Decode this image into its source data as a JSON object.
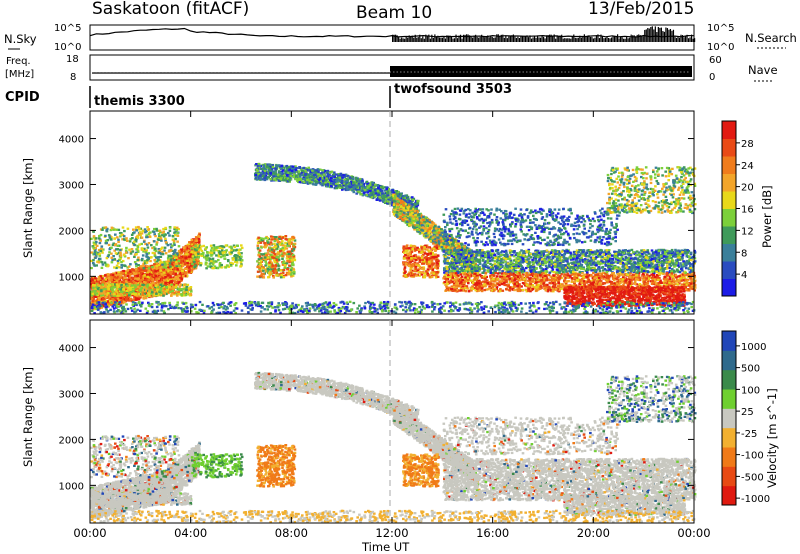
{
  "header": {
    "radar": "Saskatoon (fitACF)",
    "beam": "Beam 10",
    "date": "13/Feb/2015"
  },
  "sky_panel": {
    "left_label": "N.Sky",
    "left_ticks": [
      "10^5",
      "10^0"
    ],
    "right_label": "N.Search",
    "right_ticks": [
      "10^5",
      "10^0"
    ]
  },
  "freq_panel": {
    "left_label_line1": "Freq.",
    "left_label_line2": "[MHz]",
    "left_ticks": [
      "18",
      "8"
    ],
    "right_label": "Nave",
    "right_ticks": [
      "60",
      "0"
    ]
  },
  "cpid": {
    "label": "CPID",
    "modes": [
      {
        "name": "themis 3300",
        "start_hour": 0
      },
      {
        "name": "twofsound 3503",
        "start_hour": 12
      }
    ]
  },
  "x_axis": {
    "label": "Time UT",
    "ticks": [
      "00:00",
      "04:00",
      "08:00",
      "12:00",
      "16:00",
      "20:00",
      "00:00"
    ],
    "range_hours": [
      0,
      24
    ]
  },
  "power_panel": {
    "ylabel": "Slant Range [km]",
    "yticks": [
      "1000",
      "2000",
      "3000",
      "4000"
    ],
    "colorbar_label": "Power [dB]",
    "colorbar_ticks": [
      "4",
      "8",
      "12",
      "16",
      "20",
      "24",
      "28"
    ],
    "colors": [
      "#1c1ce6",
      "#2a4cc0",
      "#3a7f9a",
      "#3f9a5a",
      "#7ccf3a",
      "#e8d81a",
      "#f3a52a",
      "#f07c1c",
      "#e94a16",
      "#e21a12"
    ]
  },
  "velocity_panel": {
    "ylabel": "Slant Range [km]",
    "yticks": [
      "1000",
      "2000",
      "3000",
      "4000"
    ],
    "colorbar_label": "Velocity [m s^-1]",
    "colorbar_ticks": [
      "1000",
      "500",
      "100",
      "25",
      "-25",
      "-100",
      "-500",
      "-1000"
    ],
    "colors": [
      "#2146b8",
      "#2f6a8c",
      "#3a8a4a",
      "#6fcf30",
      "#c8c8c0",
      "#f2b030",
      "#f07a18",
      "#e84a14",
      "#e01a10"
    ]
  },
  "chart_data": {
    "type": "heatmap",
    "x_range_hours": [
      0,
      24
    ],
    "y_range_km": [
      180,
      4600
    ],
    "power_scale_db": [
      0,
      32
    ],
    "velocity_scale_ms": [
      -1000,
      1000
    ]
  }
}
